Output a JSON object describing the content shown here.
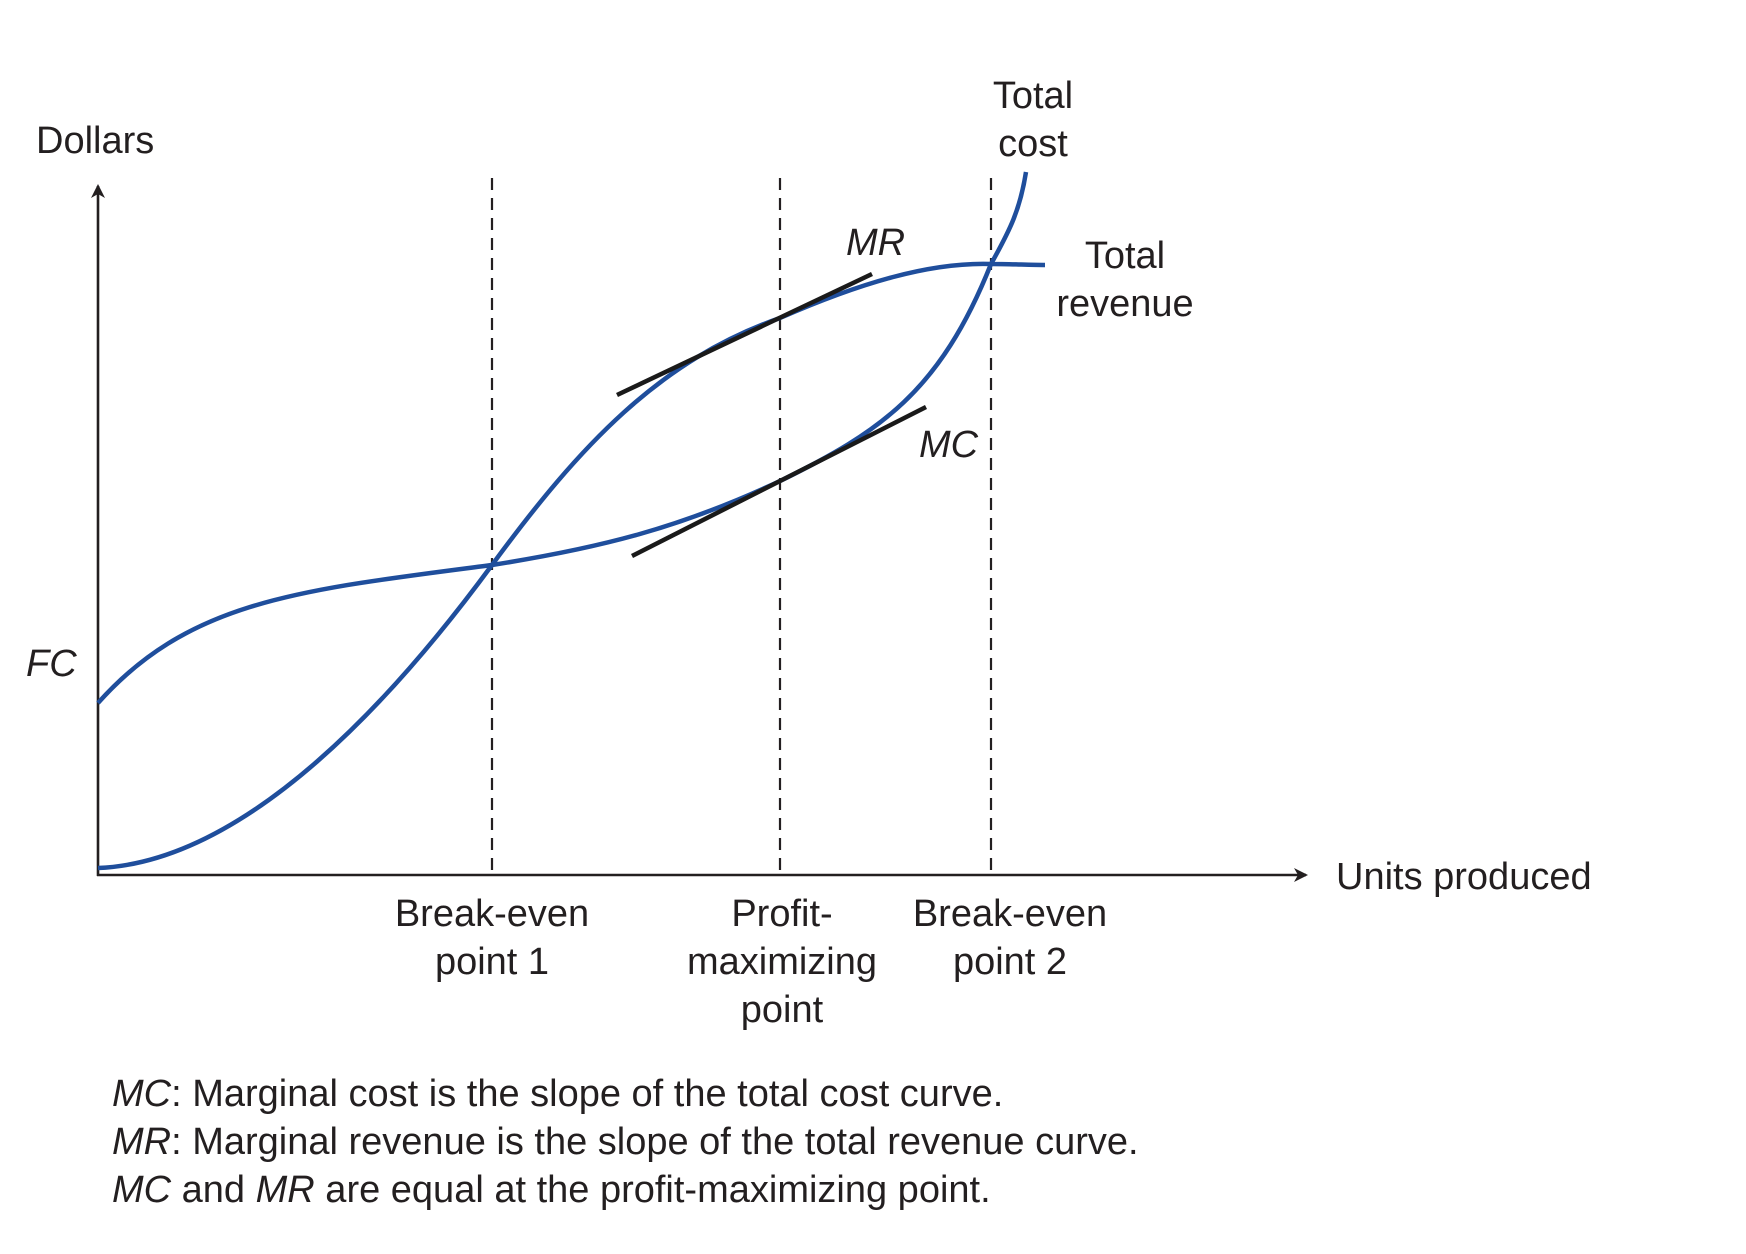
{
  "diagram": {
    "y_axis_label": "Dollars",
    "x_axis_label": "Units produced",
    "fixed_cost_label": "FC",
    "total_cost_label": [
      "Total",
      "cost"
    ],
    "total_revenue_label": [
      "Total",
      "revenue"
    ],
    "mr_label": "MR",
    "mc_label": "MC",
    "markers": [
      {
        "id": "be1",
        "label": [
          "Break-even",
          "point 1"
        ]
      },
      {
        "id": "pm",
        "label": [
          "Profit-",
          "maximizing",
          "point"
        ]
      },
      {
        "id": "be2",
        "label": [
          "Break-even",
          "point 2"
        ]
      }
    ],
    "colors": {
      "curve": "#1f4e9c",
      "axis": "#231f20",
      "tangent": "#1a1a1a"
    }
  },
  "caption": [
    {
      "term": "MC",
      "text": ": Marginal cost is the slope of the total cost curve."
    },
    {
      "term": "MR",
      "text": ": Marginal revenue is the slope of the total revenue curve."
    },
    {
      "term1": "MC",
      "mid": " and ",
      "term2": "MR",
      "text": " are equal at the profit-maximizing point."
    }
  ]
}
